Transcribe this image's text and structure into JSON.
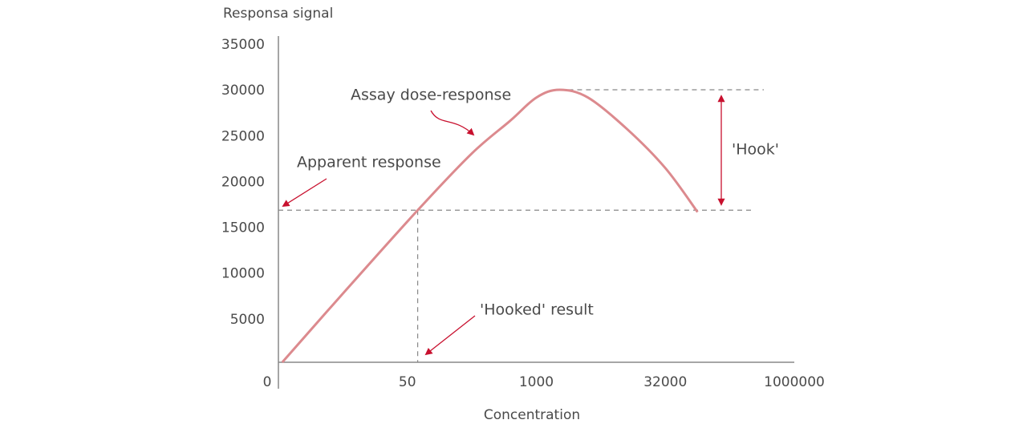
{
  "chart_data": {
    "type": "line",
    "y_label": "Responsa signal",
    "x_label": "Concentration",
    "xlim": [
      0,
      4
    ],
    "xticks": [
      {
        "value": 0,
        "label": "0"
      },
      {
        "value": 1,
        "label": "50"
      },
      {
        "value": 2,
        "label": "1000"
      },
      {
        "value": 3,
        "label": "32000"
      },
      {
        "value": 4,
        "label": "1000000"
      }
    ],
    "ylim": [
      0,
      35000
    ],
    "yticks": [
      5000,
      10000,
      15000,
      20000,
      25000,
      30000,
      35000
    ],
    "series": [
      {
        "color": "#dc8a8e",
        "x": [
          0.03,
          0.5,
          1.08,
          1.5,
          1.8,
          2.0,
          2.18,
          2.4,
          2.7,
          3.0,
          3.25
        ],
        "values": [
          0,
          7500,
          16600,
          22800,
          26400,
          28900,
          29750,
          28900,
          25500,
          21200,
          16400
        ]
      }
    ],
    "annotations": {
      "curve": "Assay dose-response",
      "apparent": "Apparent response",
      "hooked": "'Hooked' result",
      "hook": "'Hook'"
    }
  }
}
